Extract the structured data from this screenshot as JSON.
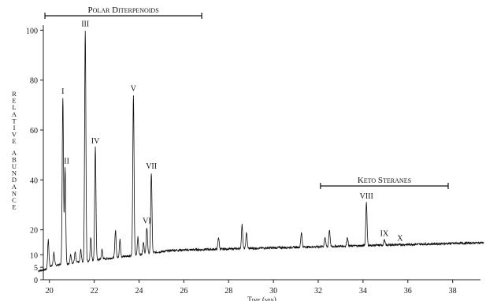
{
  "chart_data": {
    "type": "line",
    "xlabel": "Time (min)",
    "ylabel": "Relative Abundance",
    "xlim": [
      19.5,
      39.4
    ],
    "ylim": [
      0,
      102
    ],
    "x_ticks": [
      20,
      22,
      24,
      26,
      28,
      30,
      32,
      34,
      36,
      38
    ],
    "x_tick_labels": [
      "20",
      "22",
      "24",
      "26",
      "28",
      "30",
      "32",
      "34",
      "36",
      "38"
    ],
    "y_ticks": [
      0,
      5,
      10,
      20,
      40,
      60,
      80,
      100
    ],
    "y_tick_labels": [
      "0",
      "5",
      "10",
      "20",
      "40",
      "60",
      "80",
      "100"
    ],
    "peaks": [
      {
        "label": "I",
        "x": 20.6,
        "y": 73
      },
      {
        "label": "II",
        "x": 20.7,
        "y": 45
      },
      {
        "label": "III",
        "x": 21.6,
        "y": 100
      },
      {
        "label": "IV",
        "x": 22.05,
        "y": 53
      },
      {
        "label": "V",
        "x": 23.75,
        "y": 74
      },
      {
        "label": "VI",
        "x": 24.35,
        "y": 21
      },
      {
        "label": "VII",
        "x": 24.55,
        "y": 43
      },
      {
        "label": "VIII",
        "x": 34.15,
        "y": 31
      },
      {
        "label": "IX",
        "x": 34.95,
        "y": 16
      },
      {
        "label": "X",
        "x": 35.65,
        "y": 14
      }
    ],
    "annotations": [
      {
        "text": "Polar Diterpenoids",
        "x_range": [
          19.8,
          26.8
        ]
      },
      {
        "text": "Keto Steranes",
        "x_range": [
          32.1,
          37.8
        ]
      }
    ],
    "grid": false
  }
}
